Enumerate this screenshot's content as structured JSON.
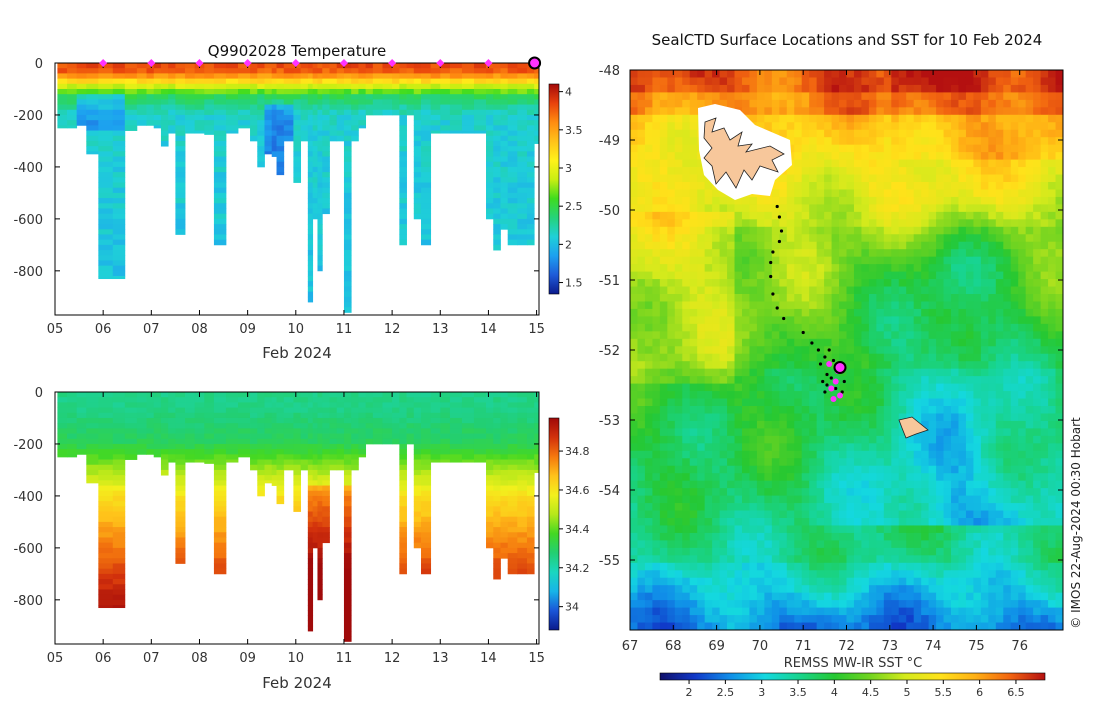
{
  "colors": {
    "temp_scale": [
      "#0a1a8c",
      "#1f5bd8",
      "#1da0f0",
      "#1fd0d8",
      "#25d37a",
      "#3fdc1f",
      "#c9ee12",
      "#fff21a",
      "#ffc21a",
      "#ff8c10",
      "#e8420c",
      "#a40a0a"
    ],
    "sal_scale": [
      "#0a1a8c",
      "#1a55d8",
      "#18b4e8",
      "#1ad6c0",
      "#22cf72",
      "#44d823",
      "#b6e81a",
      "#f3f01c",
      "#ffc21a",
      "#f5780e",
      "#d2310c",
      "#a00a0a"
    ],
    "sst_scale": [
      "#10106a",
      "#1038c8",
      "#108ee8",
      "#14d8e0",
      "#18d48c",
      "#26c832",
      "#72d420",
      "#d4ea1c",
      "#ffe21a",
      "#ffb014",
      "#f26410",
      "#b41010"
    ],
    "marker": "#ff33ff",
    "land": "#f7c79b"
  },
  "chart_data": [
    {
      "id": "temperature-section",
      "type": "heatmap",
      "title": "Q9902028  Temperature",
      "xlabel": "Feb 2024",
      "ylabel": "",
      "x_tick_labels": [
        "05",
        "06",
        "07",
        "08",
        "09",
        "10",
        "11",
        "12",
        "13",
        "14",
        "15"
      ],
      "x_ticks": [
        5,
        6,
        7,
        8,
        9,
        10,
        11,
        12,
        13,
        14,
        15
      ],
      "xlim": [
        5,
        15.05
      ],
      "y_ticks": [
        0,
        -200,
        -400,
        -600,
        -800
      ],
      "y_tick_labels": [
        "0",
        "-200",
        "-400",
        "-600",
        "-800"
      ],
      "ylim": [
        -970,
        0
      ],
      "colorbar": {
        "ticks": [
          1.5,
          2,
          2.5,
          3,
          3.5,
          4
        ],
        "labels": [
          "1.5",
          "2",
          "2.5",
          "3",
          "3.5",
          "4"
        ],
        "range": [
          1.35,
          4.1
        ]
      },
      "surface_markers_days": [
        6,
        7,
        8,
        9,
        10,
        11,
        12,
        13,
        14
      ],
      "current_marker_day": 15,
      "profiles": [
        {
          "t": 5.05,
          "depth": 250
        },
        {
          "t": 5.25,
          "depth": 250
        },
        {
          "t": 5.45,
          "depth": 240
        },
        {
          "t": 5.65,
          "depth": 350
        },
        {
          "t": 5.9,
          "depth": 830
        },
        {
          "t": 6.2,
          "depth": 830
        },
        {
          "t": 6.45,
          "depth": 260
        },
        {
          "t": 6.7,
          "depth": 240
        },
        {
          "t": 6.9,
          "depth": 240
        },
        {
          "t": 7.05,
          "depth": 250
        },
        {
          "t": 7.2,
          "depth": 320
        },
        {
          "t": 7.35,
          "depth": 270
        },
        {
          "t": 7.5,
          "depth": 660
        },
        {
          "t": 7.7,
          "depth": 270
        },
        {
          "t": 7.9,
          "depth": 270
        },
        {
          "t": 8.1,
          "depth": 275
        },
        {
          "t": 8.3,
          "depth": 700
        },
        {
          "t": 8.55,
          "depth": 270
        },
        {
          "t": 8.8,
          "depth": 250
        },
        {
          "t": 9.05,
          "depth": 300
        },
        {
          "t": 9.2,
          "depth": 400
        },
        {
          "t": 9.35,
          "depth": 350
        },
        {
          "t": 9.5,
          "depth": 360
        },
        {
          "t": 9.6,
          "depth": 430
        },
        {
          "t": 9.75,
          "depth": 300
        },
        {
          "t": 9.95,
          "depth": 460
        },
        {
          "t": 10.1,
          "depth": 300
        },
        {
          "t": 10.25,
          "depth": 920
        },
        {
          "t": 10.35,
          "depth": 600
        },
        {
          "t": 10.45,
          "depth": 800
        },
        {
          "t": 10.55,
          "depth": 580
        },
        {
          "t": 10.7,
          "depth": 300
        },
        {
          "t": 10.85,
          "depth": 300
        },
        {
          "t": 11.0,
          "depth": 960
        },
        {
          "t": 11.15,
          "depth": 300
        },
        {
          "t": 11.3,
          "depth": 250
        },
        {
          "t": 11.45,
          "depth": 200
        },
        {
          "t": 11.6,
          "depth": 200
        },
        {
          "t": 11.8,
          "depth": 200
        },
        {
          "t": 12.0,
          "depth": 200
        },
        {
          "t": 12.15,
          "depth": 700
        },
        {
          "t": 12.3,
          "depth": 200
        },
        {
          "t": 12.45,
          "depth": 600
        },
        {
          "t": 12.6,
          "depth": 700
        },
        {
          "t": 12.8,
          "depth": 270
        },
        {
          "t": 13.0,
          "depth": 270
        },
        {
          "t": 13.2,
          "depth": 270
        },
        {
          "t": 13.45,
          "depth": 270
        },
        {
          "t": 13.7,
          "depth": 270
        },
        {
          "t": 13.95,
          "depth": 600
        },
        {
          "t": 14.1,
          "depth": 720
        },
        {
          "t": 14.25,
          "depth": 640
        },
        {
          "t": 14.4,
          "depth": 700
        },
        {
          "t": 14.6,
          "depth": 700
        },
        {
          "t": 14.8,
          "depth": 700
        },
        {
          "t": 14.95,
          "depth": 310
        }
      ]
    },
    {
      "id": "salinity-section",
      "type": "heatmap",
      "title": "",
      "xlabel": "Feb 2024",
      "x_tick_labels": [
        "05",
        "06",
        "07",
        "08",
        "09",
        "10",
        "11",
        "12",
        "13",
        "14",
        "15"
      ],
      "x_ticks": [
        5,
        6,
        7,
        8,
        9,
        10,
        11,
        12,
        13,
        14,
        15
      ],
      "xlim": [
        5,
        15.05
      ],
      "y_ticks": [
        0,
        -200,
        -400,
        -600,
        -800
      ],
      "y_tick_labels": [
        "0",
        "-200",
        "-400",
        "-600",
        "-800"
      ],
      "ylim": [
        -970,
        0
      ],
      "colorbar": {
        "ticks": [
          34,
          34.2,
          34.4,
          34.6,
          34.8
        ],
        "labels": [
          "34",
          "34.2",
          "34.4",
          "34.6",
          "34.8"
        ],
        "range": [
          33.88,
          34.97
        ]
      }
    },
    {
      "id": "sst-map",
      "type": "heatmap",
      "title": "SealCTD Surface Locations and SST for 10 Feb 2024",
      "xlabel": "",
      "x_ticks": [
        67,
        68,
        69,
        70,
        71,
        72,
        73,
        74,
        75,
        76
      ],
      "x_tick_labels": [
        "67",
        "68",
        "69",
        "70",
        "71",
        "72",
        "73",
        "74",
        "75",
        "76"
      ],
      "y_ticks": [
        -48,
        -49,
        -50,
        -51,
        -52,
        -53,
        -54,
        -55
      ],
      "y_tick_labels": [
        "-48",
        "-49",
        "-50",
        "-51",
        "-52",
        "-53",
        "-54",
        "-55"
      ],
      "xlim": [
        67,
        77
      ],
      "ylim": [
        -56,
        -48
      ],
      "colorbar": {
        "label": "REMSS MW-IR SST °C",
        "ticks": [
          2,
          2.5,
          3,
          3.5,
          4,
          4.5,
          5,
          5.5,
          6,
          6.5
        ],
        "labels": [
          "2",
          "2.5",
          "3",
          "3.5",
          "4",
          "4.5",
          "5",
          "5.5",
          "6",
          "6.5"
        ],
        "range": [
          1.6,
          6.9
        ]
      },
      "track_points": [
        [
          70.4,
          -49.95
        ],
        [
          70.45,
          -50.1
        ],
        [
          70.5,
          -50.3
        ],
        [
          70.45,
          -50.45
        ],
        [
          70.3,
          -50.6
        ],
        [
          70.25,
          -50.75
        ],
        [
          70.25,
          -50.95
        ],
        [
          70.3,
          -51.2
        ],
        [
          70.4,
          -51.4
        ],
        [
          70.55,
          -51.55
        ],
        [
          71.0,
          -51.75
        ],
        [
          71.2,
          -51.9
        ],
        [
          71.35,
          -52.0
        ],
        [
          71.5,
          -52.1
        ],
        [
          71.6,
          -52.2
        ],
        [
          71.55,
          -52.35
        ],
        [
          71.45,
          -52.45
        ],
        [
          71.55,
          -52.5
        ],
        [
          71.65,
          -52.4
        ],
        [
          71.75,
          -52.55
        ],
        [
          71.9,
          -52.6
        ],
        [
          71.7,
          -52.7
        ],
        [
          71.8,
          -52.3
        ],
        [
          71.4,
          -52.2
        ],
        [
          71.5,
          -52.6
        ],
        [
          71.95,
          -52.45
        ],
        [
          71.6,
          -52.0
        ],
        [
          71.7,
          -52.15
        ]
      ],
      "recent_points": [
        [
          71.6,
          -52.2
        ],
        [
          71.75,
          -52.45
        ],
        [
          71.8,
          -52.3
        ],
        [
          71.65,
          -52.55
        ],
        [
          71.85,
          -52.65
        ],
        [
          71.7,
          -52.7
        ]
      ],
      "current_position": [
        71.85,
        -52.25
      ]
    }
  ],
  "credit": "© IMOS 22-Aug-2024 00:30 Hobart"
}
